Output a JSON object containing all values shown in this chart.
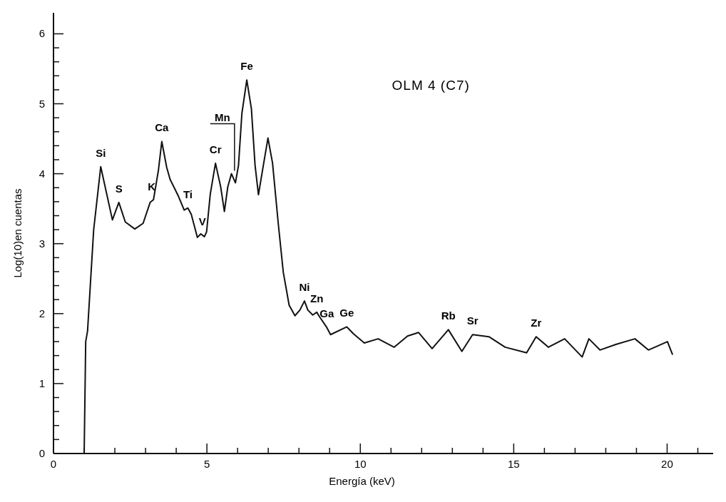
{
  "chart_data": {
    "type": "line",
    "title": "OLM 4 (C7)",
    "xlabel": "Energía (keV)",
    "ylabel": "Log(10)en cuentas",
    "xlim": [
      0,
      21.5
    ],
    "ylim": [
      0,
      6.3
    ],
    "xticks": [
      0,
      {
        "value": 1,
        "label": null
      },
      {
        "value": 2,
        "label": null
      },
      {
        "value": 3,
        "label": null
      },
      {
        "value": 4,
        "label": null
      },
      5,
      {
        "value": 6,
        "label": null
      },
      {
        "value": 7,
        "label": null
      },
      {
        "value": 8,
        "label": null
      },
      {
        "value": 9,
        "label": null
      },
      10,
      {
        "value": 11,
        "label": null
      },
      {
        "value": 12,
        "label": null
      },
      {
        "value": 13,
        "label": null
      },
      {
        "value": 14,
        "label": null
      },
      15,
      {
        "value": 16,
        "label": null
      },
      {
        "value": 17,
        "label": null
      },
      {
        "value": 18,
        "label": null
      },
      {
        "value": 19,
        "label": null
      },
      20,
      {
        "value": 21,
        "label": null
      }
    ],
    "yticks": [
      0,
      {
        "value": 0.2,
        "label": null
      },
      {
        "value": 0.4,
        "label": null
      },
      {
        "value": 0.6,
        "label": null
      },
      {
        "value": 0.8,
        "label": null
      },
      1,
      {
        "value": 1.2,
        "label": null
      },
      {
        "value": 1.4,
        "label": null
      },
      {
        "value": 1.6,
        "label": null
      },
      {
        "value": 1.8,
        "label": null
      },
      2,
      {
        "value": 2.2,
        "label": null
      },
      {
        "value": 2.4,
        "label": null
      },
      {
        "value": 2.6,
        "label": null
      },
      {
        "value": 2.8,
        "label": null
      },
      3,
      {
        "value": 3.2,
        "label": null
      },
      {
        "value": 3.4,
        "label": null
      },
      {
        "value": 3.6,
        "label": null
      },
      {
        "value": 3.8,
        "label": null
      },
      4,
      {
        "value": 4.2,
        "label": null
      },
      {
        "value": 4.4,
        "label": null
      },
      {
        "value": 4.6,
        "label": null
      },
      {
        "value": 4.8,
        "label": null
      },
      5,
      {
        "value": 5.2,
        "label": null
      },
      {
        "value": 5.4,
        "label": null
      },
      {
        "value": 5.6,
        "label": null
      },
      {
        "value": 5.8,
        "label": null
      },
      6
    ],
    "grid": false,
    "marker": "none",
    "line_style": "solid",
    "series": [
      {
        "color": "#111111",
        "x": [
          1.0,
          1.05,
          1.11,
          1.31,
          1.54,
          1.92,
          2.13,
          2.34,
          2.65,
          2.92,
          3.15,
          3.26,
          3.42,
          3.53,
          3.69,
          3.8,
          4.07,
          4.26,
          4.38,
          4.49,
          4.69,
          4.8,
          4.92,
          4.99,
          5.11,
          5.28,
          5.45,
          5.57,
          5.68,
          5.8,
          5.93,
          6.03,
          6.14,
          6.3,
          6.45,
          6.57,
          6.68,
          6.84,
          6.99,
          7.14,
          7.33,
          7.49,
          7.68,
          7.87,
          8.03,
          8.18,
          8.29,
          8.45,
          8.58,
          8.68,
          8.91,
          9.03,
          9.56,
          9.78,
          10.13,
          10.58,
          11.1,
          11.54,
          11.9,
          12.34,
          12.87,
          13.31,
          13.66,
          14.19,
          14.72,
          15.42,
          15.73,
          16.13,
          16.66,
          17.23,
          17.45,
          17.81,
          18.33,
          18.95,
          19.39,
          20.01,
          20.17
        ],
        "values": [
          0,
          1.6,
          1.75,
          3.2,
          4.1,
          3.34,
          3.59,
          3.31,
          3.21,
          3.29,
          3.59,
          3.63,
          4.05,
          4.46,
          4.09,
          3.92,
          3.68,
          3.48,
          3.51,
          3.42,
          3.09,
          3.14,
          3.1,
          3.17,
          3.71,
          4.15,
          3.81,
          3.46,
          3.81,
          4.0,
          3.87,
          4.12,
          4.86,
          5.34,
          4.93,
          4.12,
          3.7,
          4.12,
          4.51,
          4.15,
          3.27,
          2.59,
          2.12,
          1.97,
          2.05,
          2.18,
          2.05,
          1.98,
          2.02,
          1.95,
          1.8,
          1.7,
          1.81,
          1.71,
          1.58,
          1.64,
          1.52,
          1.68,
          1.73,
          1.5,
          1.77,
          1.46,
          1.7,
          1.67,
          1.52,
          1.44,
          1.67,
          1.52,
          1.64,
          1.38,
          1.64,
          1.48,
          1.56,
          1.64,
          1.48,
          1.6,
          1.42
        ]
      }
    ],
    "annotations": [
      {
        "text": "Si",
        "x": 1.54,
        "y": 4.1
      },
      {
        "text": "S",
        "x": 2.13,
        "y": 3.59
      },
      {
        "text": "K",
        "x": 3.2,
        "y": 3.62
      },
      {
        "text": "Ca",
        "x": 3.53,
        "y": 4.46
      },
      {
        "text": "Ti",
        "x": 4.38,
        "y": 3.51
      },
      {
        "text": "V",
        "x": 4.85,
        "y": 3.12
      },
      {
        "text": "Cr",
        "x": 5.28,
        "y": 4.15
      },
      {
        "text": "Mn",
        "x": 5.9,
        "y": 4.0
      },
      {
        "text": "Fe",
        "x": 6.3,
        "y": 5.34
      },
      {
        "text": "Ni",
        "x": 8.18,
        "y": 2.18
      },
      {
        "text": "Zn",
        "x": 8.58,
        "y": 2.02
      },
      {
        "text": "Ga",
        "x": 8.91,
        "y": 1.8
      },
      {
        "text": "Ge",
        "x": 9.56,
        "y": 1.81
      },
      {
        "text": "Rb",
        "x": 12.87,
        "y": 1.77
      },
      {
        "text": "Sr",
        "x": 13.66,
        "y": 1.7
      },
      {
        "text": "Zr",
        "x": 15.73,
        "y": 1.67
      }
    ]
  }
}
